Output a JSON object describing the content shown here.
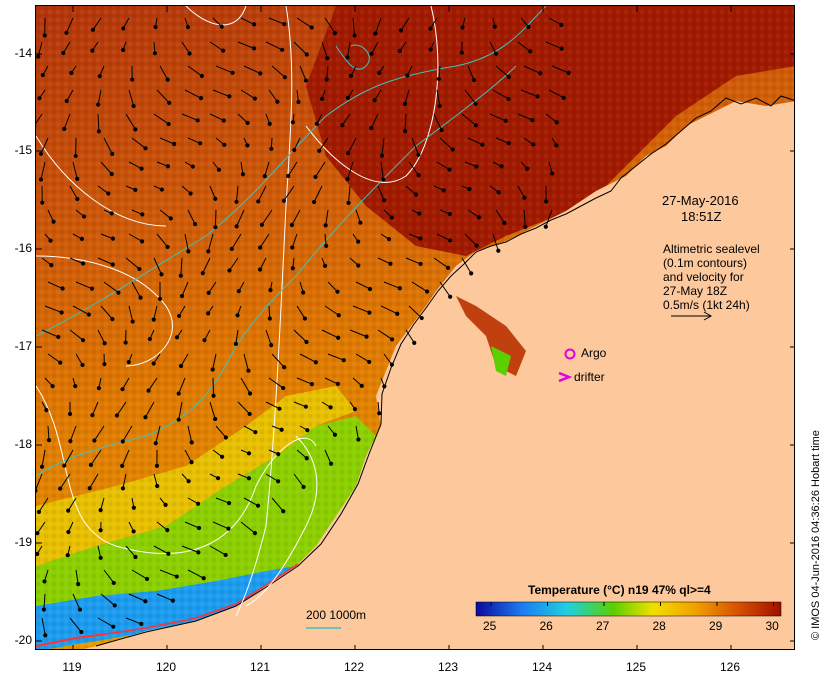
{
  "map": {
    "y_ticks": [
      "-14",
      "-15",
      "-16",
      "-17",
      "-18",
      "-19",
      "-20"
    ],
    "x_ticks": [
      "119",
      "120",
      "121",
      "122",
      "123",
      "124",
      "125",
      "126"
    ],
    "timestamp_date": "27-May-2016",
    "timestamp_time": "18:51Z",
    "altimetry_lines": [
      "Altimetric sealevel",
      "(0.1m contours)",
      "and velocity for",
      "27-May 18Z",
      "0.5m/s (1kt 24h)"
    ],
    "legend_argo": "Argo",
    "legend_drifter": "drifter",
    "bathymetry_label": "200  1000m",
    "colorbar_title": "Temperature (°C) n19 47% ql>=4",
    "colorbar_ticks": [
      "25",
      "26",
      "27",
      "28",
      "29",
      "30"
    ],
    "credit": "© IMOS 04-Jun-2016 04:36:26 Hobart time"
  },
  "colors": {
    "land": "#fcc89c",
    "sst_hot": "#a11a00",
    "sst_warm": "#d05a00",
    "sst_mid": "#e8a000",
    "sst_cool": "#5ad000",
    "sst_cold": "#1c7cf0",
    "isobath": "#40c0c0",
    "contour": "#ffffff",
    "argo": "#e000e0"
  }
}
